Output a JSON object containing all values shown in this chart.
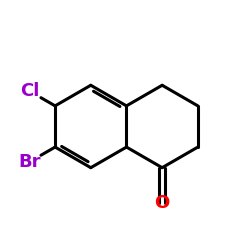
{
  "bg_color": "#ffffff",
  "bond_color": "#000000",
  "cl_color": "#9900cc",
  "br_color": "#9900cc",
  "o_color": "#ff0000",
  "cl_label": "Cl",
  "br_label": "Br",
  "o_label": "O",
  "line_width": 2.2,
  "font_size": 13,
  "figsize": [
    2.5,
    2.5
  ],
  "dpi": 100
}
